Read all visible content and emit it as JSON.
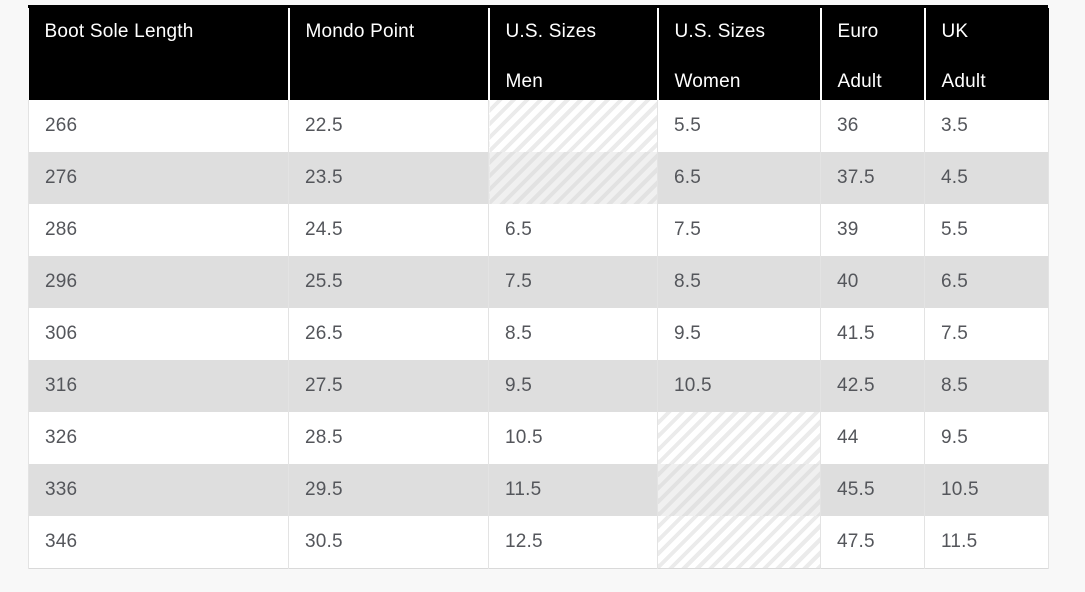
{
  "page": {
    "background_color": "#f8f8f8"
  },
  "table": {
    "title_semantic": "boot-size-conversion-chart",
    "header": {
      "background_color": "#000000",
      "text_color": "#ffffff",
      "columns": [
        {
          "key": "boot-sole-length",
          "line1": "Boot Sole Length",
          "line2": ""
        },
        {
          "key": "mondo-point",
          "line1": "Mondo Point",
          "line2": ""
        },
        {
          "key": "us-sizes-men",
          "line1": "U.S. Sizes",
          "line2": "Men"
        },
        {
          "key": "us-sizes-women",
          "line1": "U.S. Sizes",
          "line2": "Women"
        },
        {
          "key": "euro-adult",
          "line1": "Euro",
          "line2": "Adult"
        },
        {
          "key": "uk-adult",
          "line1": "UK",
          "line2": "Adult"
        }
      ]
    },
    "body": {
      "text_color": "#54565b",
      "row_alt_color": "#dedede",
      "hatch_note": "diagonal-striped cells indicate no size available",
      "rows": [
        {
          "cells": [
            {
              "v": "266"
            },
            {
              "v": "22.5"
            },
            {
              "v": "",
              "hatch": true
            },
            {
              "v": "5.5"
            },
            {
              "v": "36"
            },
            {
              "v": "3.5"
            }
          ]
        },
        {
          "cells": [
            {
              "v": "276"
            },
            {
              "v": "23.5"
            },
            {
              "v": "",
              "hatch": true
            },
            {
              "v": "6.5"
            },
            {
              "v": "37.5"
            },
            {
              "v": "4.5"
            }
          ]
        },
        {
          "cells": [
            {
              "v": "286"
            },
            {
              "v": "24.5"
            },
            {
              "v": "6.5"
            },
            {
              "v": "7.5"
            },
            {
              "v": "39"
            },
            {
              "v": "5.5"
            }
          ]
        },
        {
          "cells": [
            {
              "v": "296"
            },
            {
              "v": "25.5"
            },
            {
              "v": "7.5"
            },
            {
              "v": "8.5"
            },
            {
              "v": "40"
            },
            {
              "v": "6.5"
            }
          ]
        },
        {
          "cells": [
            {
              "v": "306"
            },
            {
              "v": "26.5"
            },
            {
              "v": "8.5"
            },
            {
              "v": "9.5"
            },
            {
              "v": "41.5"
            },
            {
              "v": "7.5"
            }
          ]
        },
        {
          "cells": [
            {
              "v": "316"
            },
            {
              "v": "27.5"
            },
            {
              "v": "9.5"
            },
            {
              "v": "10.5"
            },
            {
              "v": "42.5"
            },
            {
              "v": "8.5"
            }
          ]
        },
        {
          "cells": [
            {
              "v": "326"
            },
            {
              "v": "28.5"
            },
            {
              "v": "10.5"
            },
            {
              "v": "",
              "hatch": true
            },
            {
              "v": "44"
            },
            {
              "v": "9.5"
            }
          ]
        },
        {
          "cells": [
            {
              "v": "336"
            },
            {
              "v": "29.5"
            },
            {
              "v": "11.5"
            },
            {
              "v": "",
              "hatch": true
            },
            {
              "v": "45.5"
            },
            {
              "v": "10.5"
            }
          ]
        },
        {
          "cells": [
            {
              "v": "346"
            },
            {
              "v": "30.5"
            },
            {
              "v": "12.5"
            },
            {
              "v": "",
              "hatch": true
            },
            {
              "v": "47.5"
            },
            {
              "v": "11.5"
            }
          ]
        }
      ]
    }
  }
}
